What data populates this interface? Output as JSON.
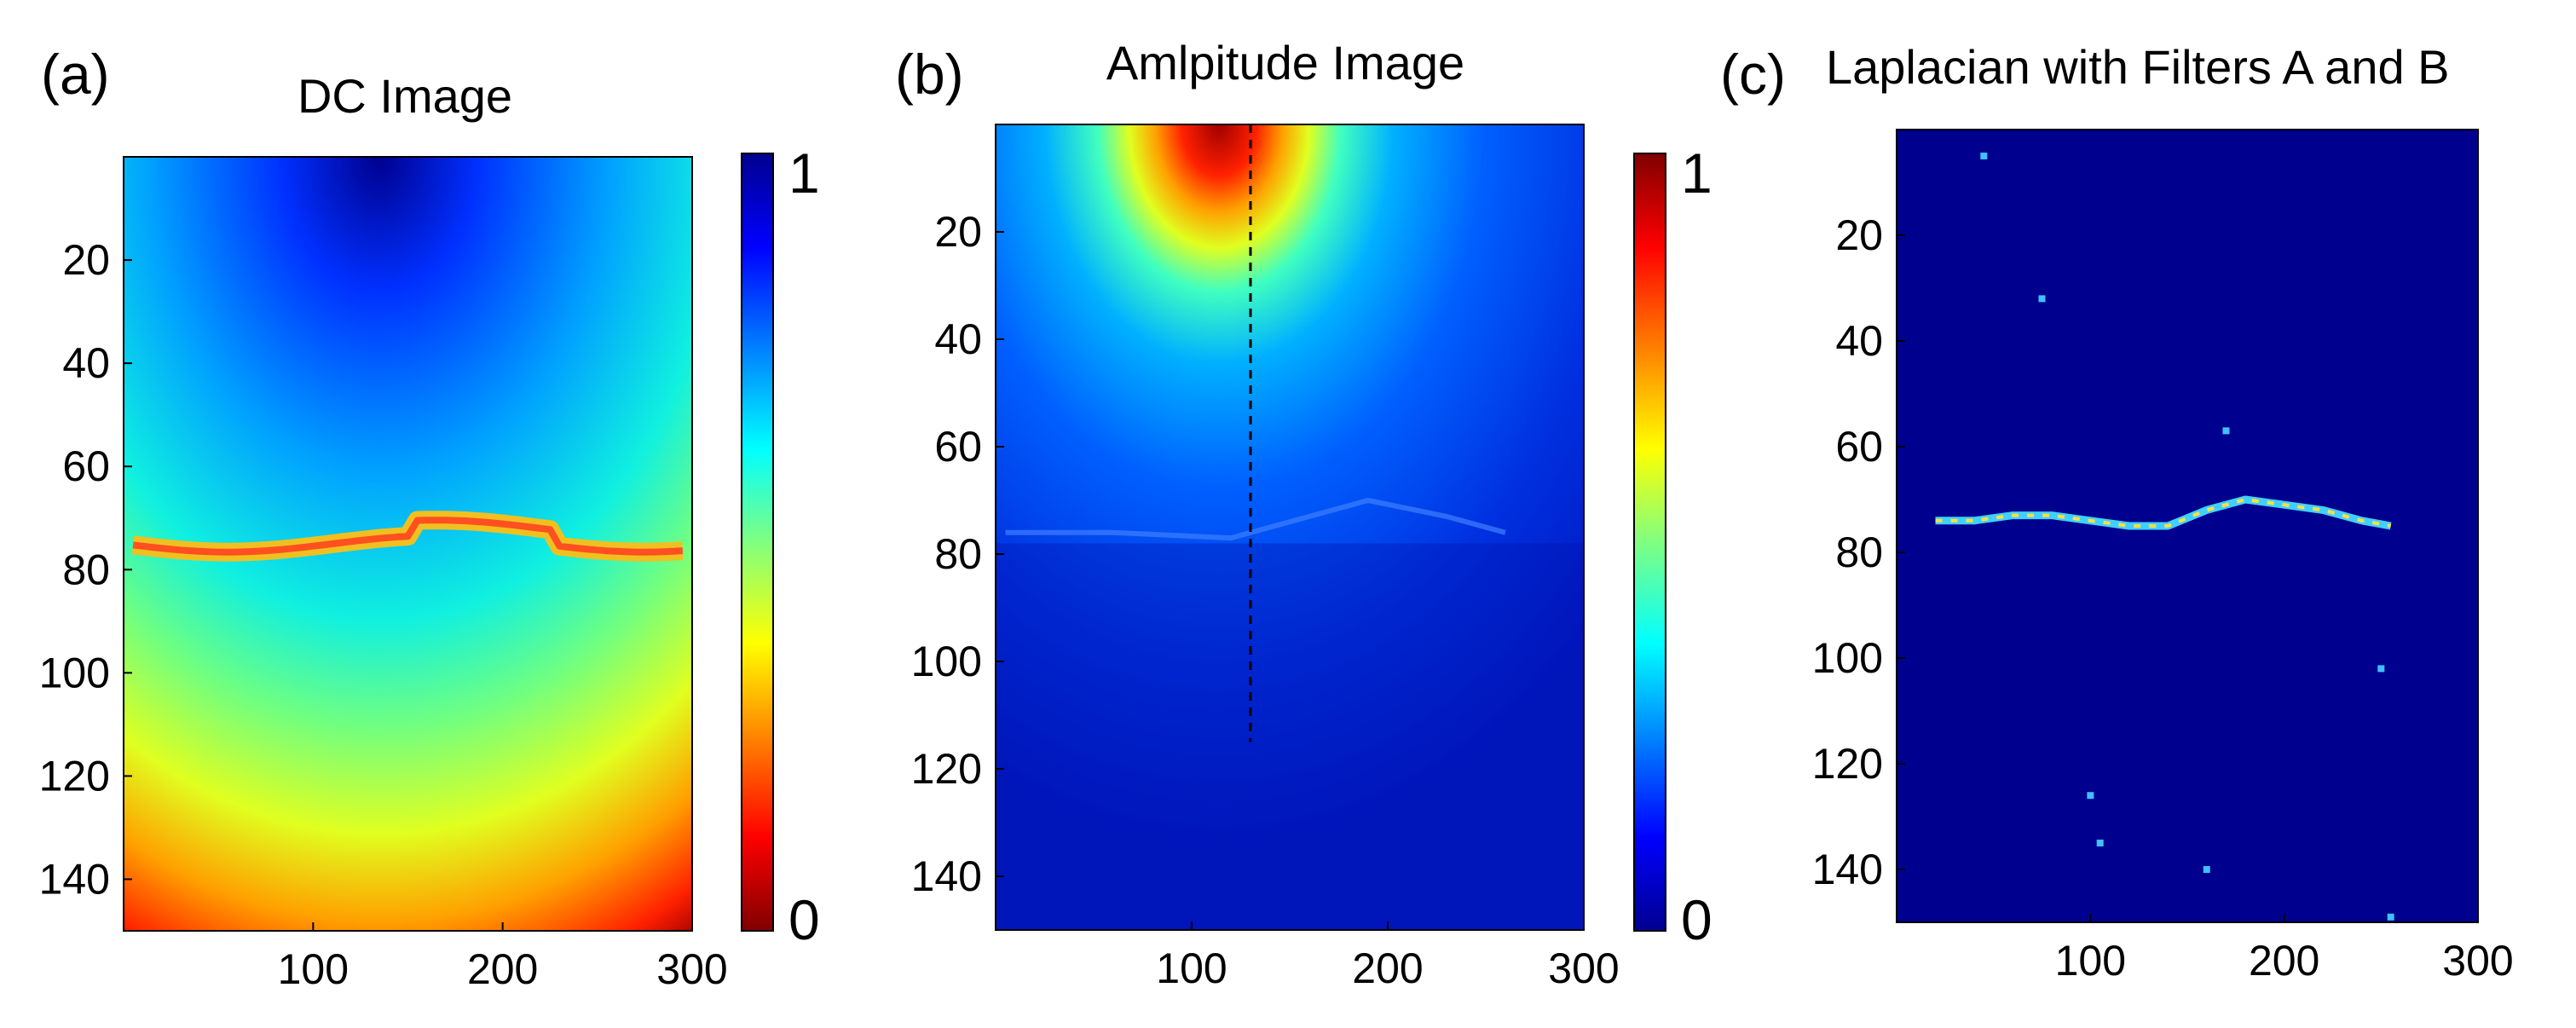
{
  "chart_data": [
    {
      "type": "heatmap",
      "panel_label": "(a)",
      "title": "DC Image",
      "colormap": "jet_reversed",
      "xlim": [
        0,
        300
      ],
      "ylim": [
        150,
        0
      ],
      "xticks": [
        "100",
        "200",
        "300"
      ],
      "xtick_values": [
        100,
        200,
        300
      ],
      "yticks": [
        "20",
        "40",
        "60",
        "80",
        "100",
        "120",
        "140"
      ],
      "ytick_values": [
        20,
        40,
        60,
        80,
        100,
        120,
        140
      ],
      "colorbar": {
        "min_label": "0",
        "max_label": "1",
        "min_color": "#800000",
        "max_color": "#00008f"
      },
      "features": {
        "boundary_line_depth": 75
      }
    },
    {
      "type": "heatmap",
      "panel_label": "(b)",
      "title": "Amlpitude Image",
      "colormap": "jet",
      "xlim": [
        0,
        300
      ],
      "ylim": [
        150,
        0
      ],
      "xticks": [
        "100",
        "200",
        "300"
      ],
      "xtick_values": [
        100,
        200,
        300
      ],
      "yticks": [
        "20",
        "40",
        "60",
        "80",
        "100",
        "120",
        "140"
      ],
      "ytick_values": [
        20,
        40,
        60,
        80,
        100,
        120,
        140
      ],
      "colorbar": {
        "min_label": "0",
        "max_label": "1",
        "min_color": "#00008f",
        "max_color": "#800000"
      },
      "features": {
        "hotspot_x": 130,
        "dashed_line": {
          "x": 130,
          "y_from": 0,
          "y_to": 115
        },
        "boundary_line_depth": 75
      }
    },
    {
      "type": "heatmap",
      "panel_label": "(c)",
      "title": "Laplacian with Filters A and B",
      "colormap": "jet",
      "xlim": [
        0,
        300
      ],
      "ylim": [
        150,
        0
      ],
      "xticks": [
        "100",
        "200",
        "300"
      ],
      "xtick_values": [
        100,
        200,
        300
      ],
      "yticks": [
        "20",
        "40",
        "60",
        "80",
        "100",
        "120",
        "140"
      ],
      "ytick_values": [
        20,
        40,
        60,
        80,
        100,
        120,
        140
      ],
      "background_color": "#00008f",
      "features": {
        "boundary_points": [
          [
            20,
            74
          ],
          [
            40,
            74
          ],
          [
            60,
            73
          ],
          [
            80,
            73
          ],
          [
            100,
            74
          ],
          [
            120,
            75
          ],
          [
            140,
            75
          ],
          [
            160,
            72
          ],
          [
            180,
            70
          ],
          [
            200,
            71
          ],
          [
            220,
            72
          ],
          [
            240,
            74
          ],
          [
            255,
            75
          ]
        ],
        "specks": [
          [
            45,
            5
          ],
          [
            75,
            32
          ],
          [
            100,
            126
          ],
          [
            105,
            135
          ],
          [
            160,
            140
          ],
          [
            250,
            102
          ],
          [
            170,
            57
          ],
          [
            255,
            149
          ]
        ]
      }
    }
  ]
}
